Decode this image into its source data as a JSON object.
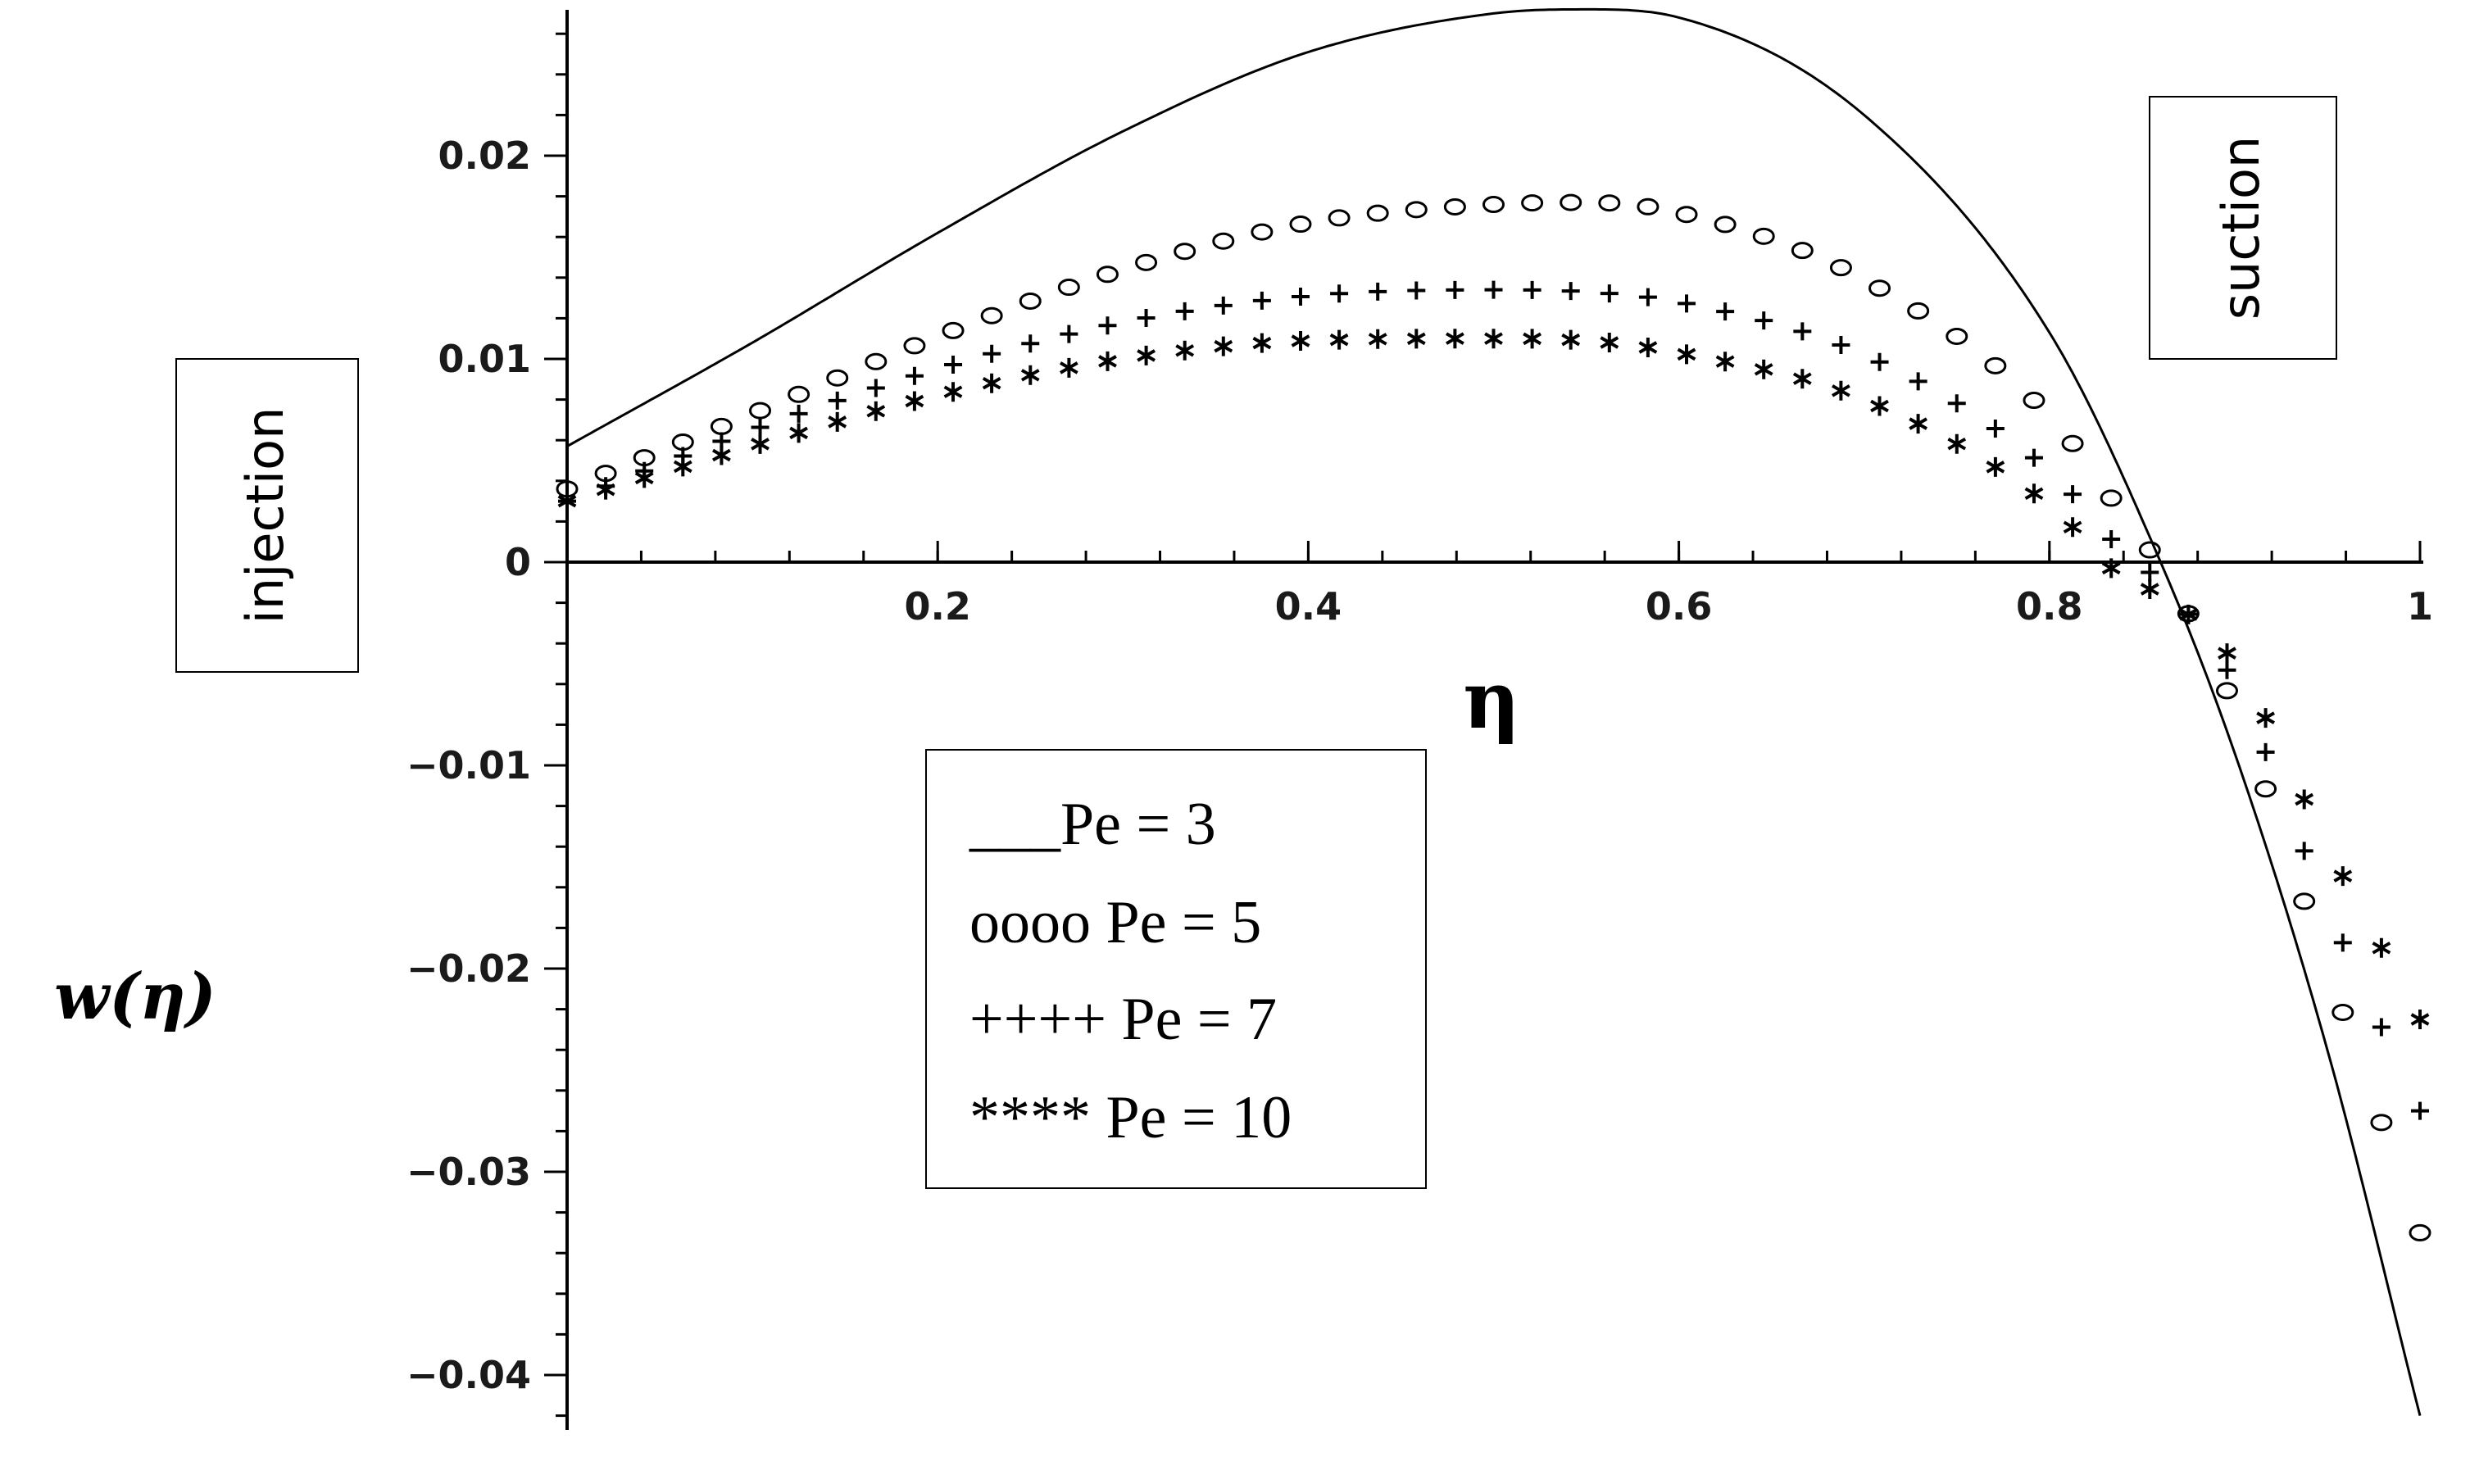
{
  "chart_data": {
    "type": "line",
    "xlabel": "η",
    "ylabel": "w(η)",
    "xlim": [
      0,
      1
    ],
    "ylim": [
      -0.042,
      0.027
    ],
    "xticks": [
      0.2,
      0.4,
      0.6,
      0.8,
      1
    ],
    "xtick_labels": [
      "0.2",
      "0.4",
      "0.6",
      "0.8",
      "1"
    ],
    "yticks": [
      0.02,
      0.01,
      0,
      -0.01,
      -0.02,
      -0.03,
      -0.04
    ],
    "ytick_labels": [
      "0.02",
      "0.01",
      "0",
      "−0.01",
      "−0.02",
      "−0.03",
      "−0.04"
    ],
    "grid": false,
    "annotations": {
      "left": "injection",
      "right": "suction"
    },
    "legend": {
      "position": "lower-center",
      "entries": [
        "___Pe = 3",
        "oooo Pe = 5",
        "++++ Pe = 7",
        "**** Pe = 10"
      ]
    },
    "series": [
      {
        "name": "Pe = 3",
        "marker": "line",
        "x": [
          0,
          0.1,
          0.2,
          0.3,
          0.4,
          0.5,
          0.55,
          0.6,
          0.7,
          0.8,
          0.86,
          0.9,
          0.95,
          1.0
        ],
        "y": [
          0.0057,
          0.0108,
          0.0162,
          0.0212,
          0.0251,
          0.027,
          0.0272,
          0.0268,
          0.022,
          0.0113,
          0.0,
          -0.0094,
          -0.024,
          -0.042
        ]
      },
      {
        "name": "Pe = 5",
        "marker": "circle",
        "x": [
          0,
          0.1,
          0.2,
          0.3,
          0.4,
          0.5,
          0.55,
          0.6,
          0.7,
          0.8,
          0.84,
          0.86,
          0.9,
          0.95,
          1.0
        ],
        "y": [
          0.0036,
          0.0073,
          0.0111,
          0.0144,
          0.0167,
          0.0176,
          0.0177,
          0.0172,
          0.0139,
          0.0072,
          0.0023,
          -0.0002,
          -0.0072,
          -0.02,
          -0.033
        ]
      },
      {
        "name": "Pe = 7",
        "marker": "plus",
        "x": [
          0,
          0.1,
          0.2,
          0.3,
          0.4,
          0.5,
          0.55,
          0.6,
          0.7,
          0.8,
          0.84,
          0.86,
          0.9,
          0.95,
          1.0
        ],
        "y": [
          0.003,
          0.0065,
          0.0095,
          0.0118,
          0.0131,
          0.0134,
          0.0133,
          0.0128,
          0.0102,
          0.0045,
          0.0005,
          -0.001,
          -0.006,
          -0.017,
          -0.027
        ]
      },
      {
        "name": "Pe = 10",
        "marker": "star",
        "x": [
          0,
          0.1,
          0.2,
          0.3,
          0.4,
          0.5,
          0.55,
          0.6,
          0.7,
          0.8,
          0.84,
          0.86,
          0.9,
          0.95,
          1.0
        ],
        "y": [
          0.003,
          0.0057,
          0.0082,
          0.01,
          0.0109,
          0.011,
          0.0109,
          0.0103,
          0.008,
          0.0028,
          -0.0008,
          -0.0016,
          -0.005,
          -0.014,
          -0.0225
        ]
      }
    ]
  }
}
